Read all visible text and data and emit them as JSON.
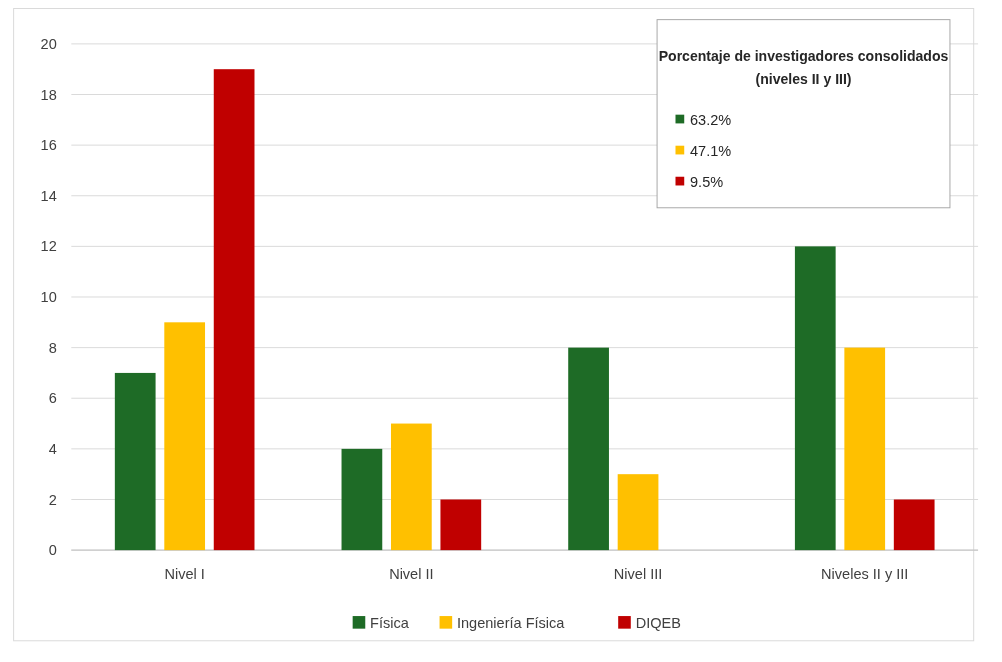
{
  "chart_data": {
    "type": "bar",
    "categories": [
      "Nivel I",
      "Nivel II",
      "Nivel III",
      "Niveles II y III"
    ],
    "series": [
      {
        "name": "Física",
        "color": "#1e6b26",
        "values": [
          7,
          4,
          8,
          12
        ]
      },
      {
        "name": "Ingeniería Física",
        "color": "#ffc000",
        "values": [
          9,
          5,
          3,
          8
        ]
      },
      {
        "name": "DIQEB",
        "color": "#c00000",
        "values": [
          19,
          2,
          0,
          2
        ]
      }
    ],
    "ylim": [
      0,
      20
    ],
    "yticks": [
      0,
      2,
      4,
      6,
      8,
      10,
      12,
      14,
      16,
      18,
      20
    ],
    "grid": "y",
    "legend": "bottom",
    "annotations": [
      "Porcentaje de investigadores consolidados (niveles II y III)",
      "63.2%",
      "47.1%",
      "9.5%"
    ]
  }
}
